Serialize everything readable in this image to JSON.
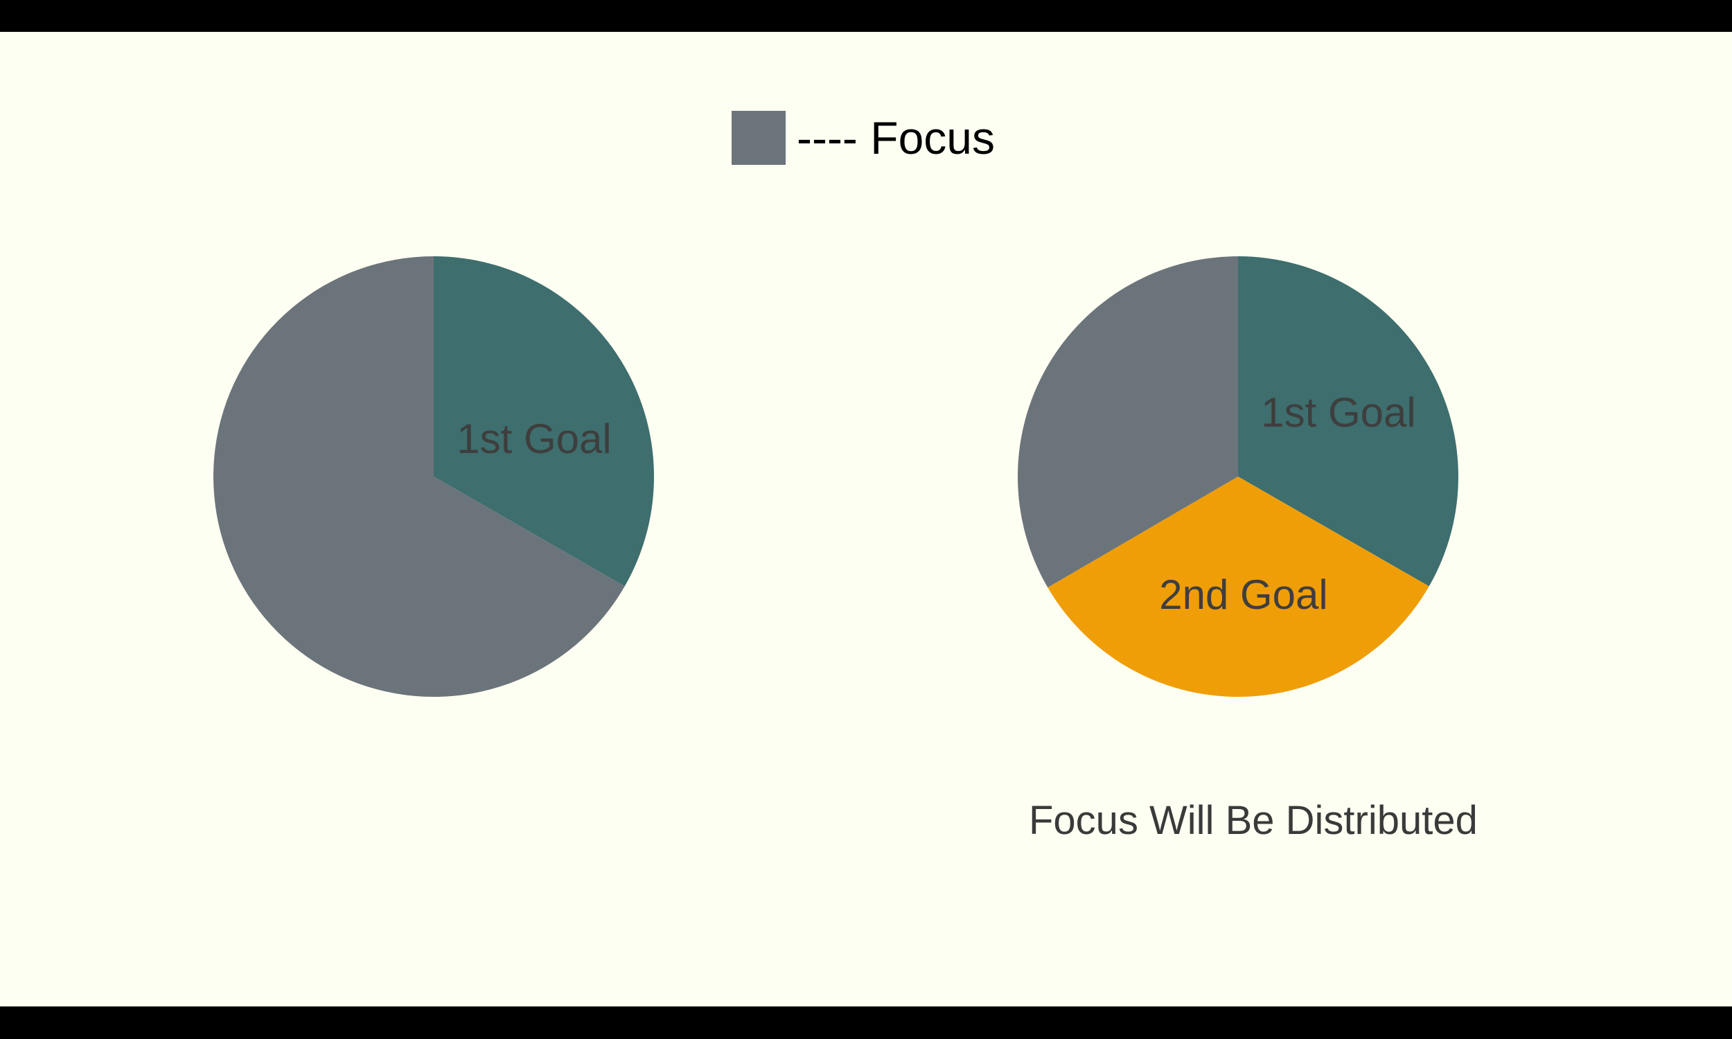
{
  "chart_data": [
    {
      "type": "pie",
      "slices": [
        {
          "label": "1st Goal",
          "value": 33.3,
          "color": "#3e6e6e"
        },
        {
          "label": "",
          "value": 66.7,
          "color": "#6c747b"
        }
      ]
    },
    {
      "type": "pie",
      "slices": [
        {
          "label": "1st Goal",
          "value": 33.3,
          "color": "#3e6e6e"
        },
        {
          "label": "2nd Goal",
          "value": 33.3,
          "color": "#f09e07"
        },
        {
          "label": "",
          "value": 33.4,
          "color": "#6c747b"
        }
      ]
    }
  ],
  "legend": {
    "text": "---- Focus",
    "swatch_color": "#6c747b"
  },
  "caption": "Focus Will Be Distributed"
}
